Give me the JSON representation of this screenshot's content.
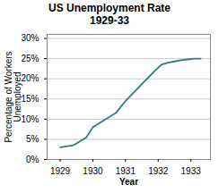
{
  "chart_data": {
    "type": "line",
    "title": "US Unemployment Rate\n1929-33",
    "xlabel": "Year",
    "ylabel": "Percentage of Workers\nUnemployed",
    "x": [
      1929,
      1929.4,
      1929.8,
      1930.0,
      1930.3,
      1930.7,
      1931.0,
      1931.3,
      1931.6,
      1931.9,
      1932.1,
      1932.3,
      1932.5,
      1932.7,
      1932.9,
      1933.1,
      1933.3
    ],
    "values": [
      3.0,
      3.5,
      5.5,
      8.0,
      9.5,
      11.5,
      14.5,
      17.0,
      19.5,
      22.0,
      23.5,
      24.0,
      24.3,
      24.6,
      24.8,
      25.0,
      25.0
    ],
    "color": "#2e7d7d",
    "xlim": [
      1928.6,
      1933.6
    ],
    "xticks": [
      1929,
      1930,
      1931,
      1932,
      1933
    ],
    "ylim": [
      0,
      31
    ],
    "yticks": [
      {
        "value": 0,
        "label": "0%"
      },
      {
        "value": 5,
        "label": "5%"
      },
      {
        "value": 10,
        "label": "10%"
      },
      {
        "value": 15,
        "label": "15%"
      },
      {
        "value": 20,
        "label": "20%"
      },
      {
        "value": 25,
        "label": "25%"
      },
      {
        "value": 30,
        "label": "30%"
      }
    ],
    "grid": "y"
  }
}
